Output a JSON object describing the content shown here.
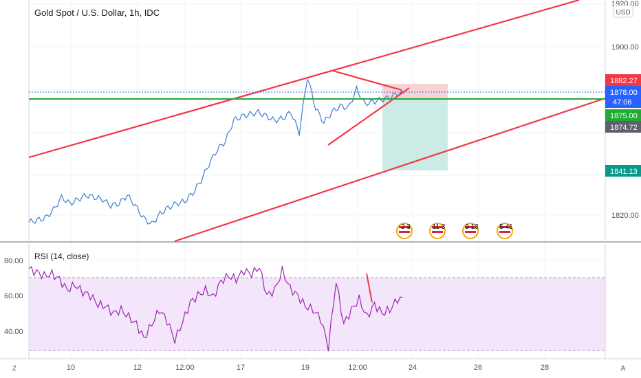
{
  "header": {
    "title": "Gold Spot / U.S. Dollar, 1h, IDC"
  },
  "price_scale": {
    "currency": "USD",
    "ticks": [
      "1920.00",
      "1900.00",
      "1820.00"
    ],
    "tags": [
      {
        "label": "1882.27",
        "color": "#f23645",
        "value": 1882.27
      },
      {
        "label": "1878.00",
        "color": "#2962ff",
        "value": 1878.0
      },
      {
        "label": "47:06",
        "color": "#2962ff",
        "value": 1878.0
      },
      {
        "label": "1875.00",
        "color": "#22ab34",
        "value": 1875.0
      },
      {
        "label": "1874.72",
        "color": "#5d606b",
        "value": 1874.72
      },
      {
        "label": "1841.13",
        "color": "#08998a",
        "value": 1841.13
      }
    ]
  },
  "rsi": {
    "label": "RSI (14, close)",
    "ticks": [
      "80.00",
      "60.00",
      "40.00"
    ],
    "upper_band": 70,
    "lower_band": 30,
    "line_color": "#9c27b0",
    "band_fill": "#f3e5fa"
  },
  "time_axis": {
    "labels": [
      "10",
      "12",
      "12:00",
      "17",
      "19",
      "12:00",
      "24",
      "26",
      "28"
    ],
    "left_button": "Z",
    "right_button": "A"
  },
  "events": [
    {
      "label": "2  3"
    },
    {
      "label": "11 3"
    },
    {
      "label": "3  13"
    },
    {
      "label": "5 41"
    }
  ],
  "colors": {
    "price_line": "#4a86d6",
    "trend_line": "#f23645",
    "support_line": "#22ab34",
    "target_zone": "#cdebe6",
    "stop_zone": "#f8d3d6"
  },
  "chart_data": {
    "type": "line",
    "title": "Gold Spot / U.S. Dollar, 1h, IDC",
    "xlabel": "",
    "ylabel": "",
    "x_ticks": [
      "10",
      "12",
      "12:00",
      "17",
      "19",
      "12:00",
      "24",
      "26",
      "28"
    ],
    "ylim": [
      1810,
      1922
    ],
    "grid": true,
    "series": [
      {
        "values": [
          1817,
          1818,
          1819,
          1823,
          1829,
          1826,
          1828,
          1830,
          1829,
          1828,
          1825,
          1826,
          1830,
          1825,
          1819,
          1816,
          1821,
          1824,
          1826,
          1827,
          1831,
          1837,
          1845,
          1852,
          1856,
          1866,
          1868,
          1869,
          1870,
          1868,
          1866,
          1867,
          1870,
          1860,
          1887,
          1872,
          1865,
          1870,
          1873,
          1872,
          1881,
          1874,
          1875,
          1876,
          1877,
          1879
        ]
      }
    ],
    "levels": [
      {
        "label": "1882.27",
        "value": 1882.27
      },
      {
        "label": "1878.00",
        "value": 1878.0
      },
      {
        "label": "1875.00",
        "value": 1875.0
      },
      {
        "label": "1874.72",
        "value": 1874.72
      },
      {
        "label": "1841.13",
        "value": 1841.13
      }
    ],
    "rsi_panel": {
      "ylim": [
        27,
        86
      ],
      "values": [
        75,
        73,
        71,
        72,
        69,
        63,
        66,
        62,
        60,
        55,
        54,
        50,
        52,
        48,
        44,
        36,
        44,
        52,
        46,
        35,
        45,
        56,
        60,
        63,
        59,
        68,
        71,
        69,
        74,
        72,
        76,
        60,
        63,
        74,
        64,
        60,
        54,
        52,
        47,
        31,
        68,
        44,
        52,
        58,
        48,
        55,
        50,
        52,
        58
      ]
    }
  }
}
